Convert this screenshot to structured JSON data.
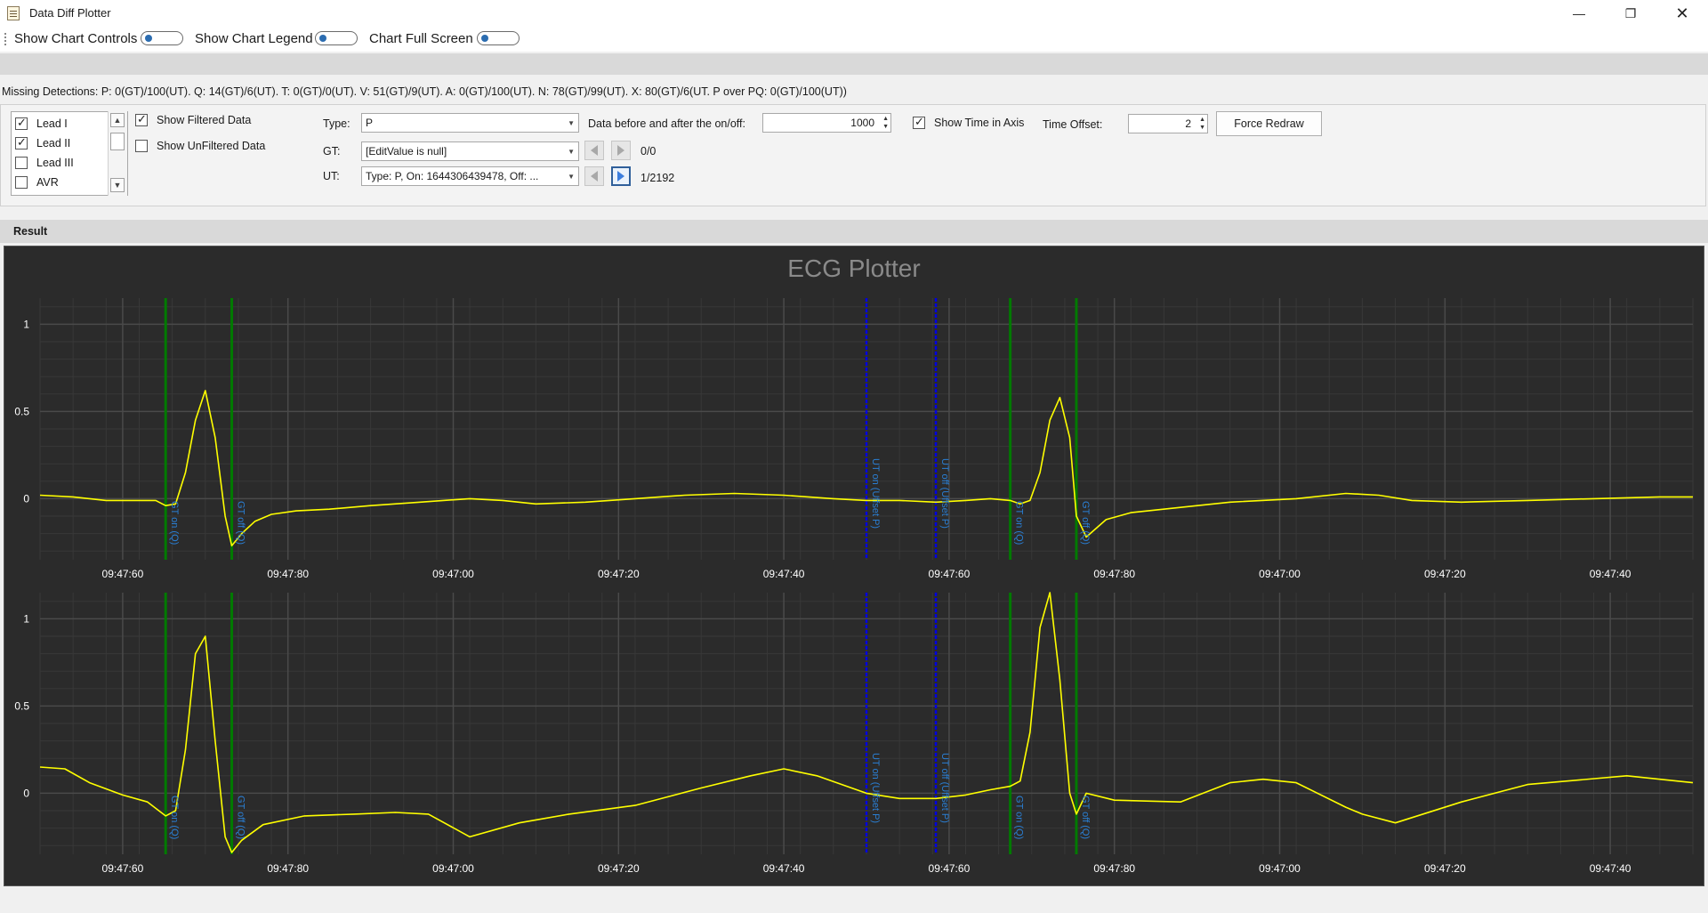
{
  "window": {
    "title": "Data Diff Plotter"
  },
  "toolbar": [
    {
      "label": "Show Chart Controls"
    },
    {
      "label": "Show Chart Legend"
    },
    {
      "label": "Chart Full Screen"
    }
  ],
  "missing_detections": "Missing Detections: P: 0(GT)/100(UT). Q: 14(GT)/6(UT). T: 0(GT)/0(UT). V: 51(GT)/9(UT). A: 0(GT)/100(UT). N: 78(GT)/99(UT). X: 80(GT)/6(UT. P over PQ: 0(GT)/100(UT))",
  "leads": [
    {
      "label": "Lead I",
      "checked": true
    },
    {
      "label": "Lead II",
      "checked": true
    },
    {
      "label": "Lead III",
      "checked": false
    },
    {
      "label": "AVR",
      "checked": false
    }
  ],
  "options": {
    "show_filtered": "Show Filtered Data",
    "show_unfiltered": "Show UnFiltered Data"
  },
  "controls": {
    "type_label": "Type:",
    "type_value": "P",
    "gt_label": "GT:",
    "gt_value": "[EditValue is null]",
    "gt_counter": "0/0",
    "ut_label": "UT:",
    "ut_value": "Type: P, On: 1644306439478, Off: ...",
    "ut_counter": "1/2192",
    "before_after_label": "Data before and after the on/off:",
    "before_after_value": "1000",
    "show_time_axis": "Show Time in Axis",
    "time_offset_label": "Time Offset:",
    "time_offset_value": "2",
    "force_redraw": "Force Redraw"
  },
  "result": {
    "title": "Result"
  },
  "chart_data": {
    "type": "line",
    "title": "ECG Plotter",
    "x_tick_labels": [
      "09:47:60",
      "09:47:80",
      "09:47:00",
      "09:47:20",
      "09:47:40",
      "09:47:60",
      "09:47:80",
      "09:47:00",
      "09:47:20",
      "09:47:40"
    ],
    "x_range": [
      0,
      1000
    ],
    "ylim": [
      -0.35,
      1.15
    ],
    "y_ticks": [
      0,
      0.5,
      1
    ],
    "y_tick_labels": [
      "0",
      "0.5",
      "1"
    ],
    "colors": {
      "background": "#2b2b2b",
      "signal": "#ffff00",
      "gt_marker": "#007a00",
      "ut_marker": "#0000e0",
      "marker_text": "#2a7fd4",
      "title": "#8a8a8a",
      "axis_text": "#ffffff",
      "grid": "#4a4a4a"
    },
    "markers": [
      {
        "x": 76,
        "kind": "gt",
        "label": "GT on (Q)"
      },
      {
        "x": 116,
        "kind": "gt",
        "label": "GT off (Q)"
      },
      {
        "x": 500,
        "kind": "ut",
        "label": "UT on (Uffset P)"
      },
      {
        "x": 542,
        "kind": "ut",
        "label": "UT off (Uffset P)"
      },
      {
        "x": 587,
        "kind": "gt",
        "label": "GT on (Q)"
      },
      {
        "x": 627,
        "kind": "gt",
        "label": "GT off (Q)"
      }
    ],
    "series": [
      {
        "x": [
          0,
          20,
          40,
          60,
          70,
          76,
          82,
          88,
          94,
          100,
          106,
          112,
          116,
          122,
          130,
          140,
          155,
          175,
          200,
          230,
          260,
          280,
          300,
          330,
          360,
          390,
          420,
          450,
          480,
          500,
          520,
          542,
          560,
          575,
          587,
          593,
          599,
          605,
          611,
          617,
          623,
          627,
          633,
          645,
          660,
          690,
          720,
          760,
          790,
          810,
          830,
          860,
          900,
          940,
          980,
          1000
        ],
        "y": [
          0.02,
          0.01,
          -0.01,
          -0.01,
          -0.01,
          -0.04,
          -0.03,
          0.15,
          0.45,
          0.62,
          0.35,
          -0.1,
          -0.27,
          -0.2,
          -0.13,
          -0.09,
          -0.07,
          -0.06,
          -0.04,
          -0.02,
          0.0,
          -0.01,
          -0.03,
          -0.02,
          0.0,
          0.02,
          0.03,
          0.02,
          0.0,
          -0.01,
          -0.01,
          -0.02,
          -0.01,
          0.0,
          -0.01,
          -0.03,
          -0.01,
          0.15,
          0.45,
          0.58,
          0.35,
          -0.1,
          -0.22,
          -0.12,
          -0.08,
          -0.05,
          -0.02,
          0.0,
          0.03,
          0.02,
          -0.01,
          -0.02,
          -0.01,
          0.0,
          0.01,
          0.01
        ]
      },
      {
        "x": [
          0,
          15,
          30,
          50,
          65,
          76,
          82,
          88,
          94,
          100,
          106,
          112,
          116,
          122,
          135,
          160,
          190,
          215,
          235,
          260,
          290,
          320,
          360,
          400,
          430,
          450,
          470,
          500,
          520,
          542,
          560,
          575,
          587,
          593,
          599,
          605,
          611,
          617,
          623,
          627,
          633,
          650,
          690,
          720,
          740,
          760,
          790,
          800,
          820,
          860,
          900,
          960,
          1000
        ],
        "y": [
          0.15,
          0.14,
          0.06,
          -0.01,
          -0.05,
          -0.13,
          -0.1,
          0.25,
          0.8,
          0.9,
          0.3,
          -0.25,
          -0.34,
          -0.27,
          -0.18,
          -0.13,
          -0.12,
          -0.11,
          -0.12,
          -0.25,
          -0.17,
          -0.12,
          -0.07,
          0.03,
          0.1,
          0.14,
          0.1,
          0.0,
          -0.03,
          -0.03,
          -0.01,
          0.02,
          0.04,
          0.07,
          0.35,
          0.95,
          1.15,
          0.65,
          0.0,
          -0.12,
          0.0,
          -0.04,
          -0.05,
          0.06,
          0.08,
          0.06,
          -0.08,
          -0.12,
          -0.17,
          -0.05,
          0.05,
          0.1,
          0.06
        ]
      }
    ]
  }
}
